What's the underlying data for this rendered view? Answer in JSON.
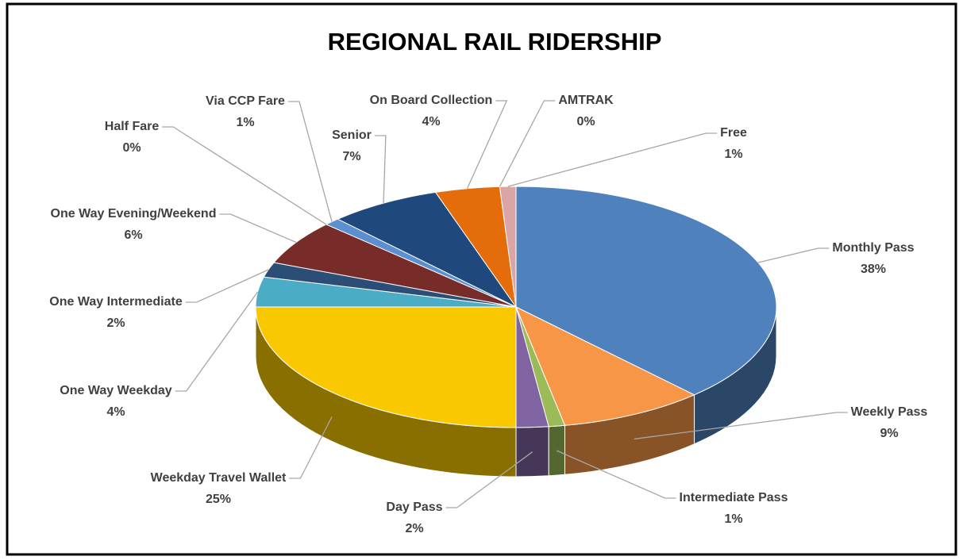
{
  "chart_data": {
    "type": "pie",
    "title": "REGIONAL RAIL RIDERSHIP",
    "categories": [
      "Monthly Pass",
      "Weekly Pass",
      "Intermediate Pass",
      "Day Pass",
      "Weekday Travel Wallet",
      "One Way Weekday",
      "One Way Intermediate",
      "One Way Evening/Weekend",
      "Half Fare",
      "Via CCP Fare",
      "Senior",
      "On Board Collection",
      "AMTRAK",
      "Free"
    ],
    "values": [
      38,
      9,
      1,
      2,
      25,
      4,
      2,
      6,
      0,
      1,
      7,
      4,
      0,
      1
    ],
    "value_labels": [
      "38%",
      "9%",
      "1%",
      "2%",
      "25%",
      "4%",
      "2%",
      "6%",
      "0%",
      "1%",
      "7%",
      "4%",
      "0%",
      "1%"
    ],
    "colors": [
      "#4f81bd",
      "#f79646",
      "#9bbb59",
      "#8064a2",
      "#f9c800",
      "#4bacc6",
      "#2c4d75",
      "#772c2a",
      "#5f7530",
      "#5b8fd0",
      "#1f497d",
      "#e46c0a",
      "#8a8a8a",
      "#d9a5a7"
    ]
  }
}
